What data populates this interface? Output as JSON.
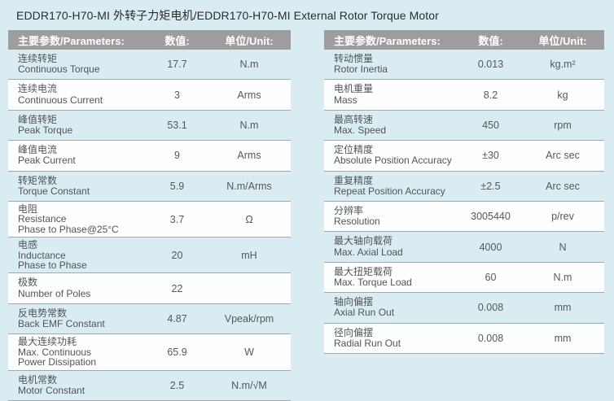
{
  "title": "EDDR170-H70-MI 外转子力矩电机/EDDR170-H70-MI External Rotor Torque Motor",
  "colors": {
    "page_background": "#d9ecf2",
    "header_bar": "#9d9d9d",
    "header_text": "#ffffff",
    "row_white": "#fdfeff",
    "row_blue": "#d9ecf2",
    "body_text": "#515458",
    "separator": "#a2a8ab"
  },
  "tables": [
    {
      "headers": {
        "param": "主要参数/Parameters:",
        "value": "数值:",
        "unit": "单位/Unit:"
      },
      "rows": [
        {
          "param_lines": [
            "连续转矩",
            "Continuous Torque"
          ],
          "value": "17.7",
          "unit": "N.m"
        },
        {
          "param_lines": [
            "连续电流",
            "Continuous Current"
          ],
          "value": "3",
          "unit": "Arms"
        },
        {
          "param_lines": [
            "峰值转矩",
            "Peak Torque"
          ],
          "value": "53.1",
          "unit": "N.m"
        },
        {
          "param_lines": [
            "峰值电流",
            "Peak Current"
          ],
          "value": "9",
          "unit": "Arms"
        },
        {
          "param_lines": [
            "转矩常数",
            "Torque Constant"
          ],
          "value": "5.9",
          "unit": "N.m/Arms"
        },
        {
          "param_lines": [
            "电阻",
            "Resistance",
            "Phase to Phase@25°C"
          ],
          "value": "3.7",
          "unit": "Ω"
        },
        {
          "param_lines": [
            "电感",
            "Inductance",
            "Phase to Phase"
          ],
          "value": "20",
          "unit": "mH"
        },
        {
          "param_lines": [
            "极数",
            "Number of Poles"
          ],
          "value": "22",
          "unit": ""
        },
        {
          "param_lines": [
            "反电势常数",
            "Back EMF Constant"
          ],
          "value": "4.87",
          "unit": "Vpeak/rpm"
        },
        {
          "param_lines": [
            "最大连续功耗",
            "Max. Continuous",
            "Power Dissipation"
          ],
          "value": "65.9",
          "unit": "W"
        },
        {
          "param_lines": [
            "电机常数",
            "Motor Constant"
          ],
          "value": "2.5",
          "unit": "N.m/√M"
        }
      ]
    },
    {
      "headers": {
        "param": "主要参数/Parameters:",
        "value": "数值:",
        "unit": "单位/Unit:"
      },
      "rows": [
        {
          "param_lines": [
            "转动惯量",
            "Rotor Inertia"
          ],
          "value": "0.013",
          "unit": "kg.m²"
        },
        {
          "param_lines": [
            "电机重量",
            "Mass"
          ],
          "value": "8.2",
          "unit": "kg"
        },
        {
          "param_lines": [
            "最高转速",
            "Max. Speed"
          ],
          "value": "450",
          "unit": "rpm"
        },
        {
          "param_lines": [
            "定位精度",
            "Absolute Position Accuracy"
          ],
          "value": "±30",
          "unit": "Arc sec"
        },
        {
          "param_lines": [
            "重复精度",
            "Repeat Position Accuracy"
          ],
          "value": "±2.5",
          "unit": "Arc sec"
        },
        {
          "param_lines": [
            "分辨率",
            "Resolution"
          ],
          "value": "3005440",
          "unit": "p/rev"
        },
        {
          "param_lines": [
            "最大轴向载荷",
            "Max. Axial Load"
          ],
          "value": "4000",
          "unit": "N"
        },
        {
          "param_lines": [
            "最大扭矩载荷",
            "Max. Torque Load"
          ],
          "value": "60",
          "unit": "N.m"
        },
        {
          "param_lines": [
            "轴向偏摆",
            "Axial Run Out"
          ],
          "value": "0.008",
          "unit": "mm"
        },
        {
          "param_lines": [
            "径向偏摆",
            "Radial Run Out"
          ],
          "value": "0.008",
          "unit": "mm"
        }
      ]
    }
  ]
}
